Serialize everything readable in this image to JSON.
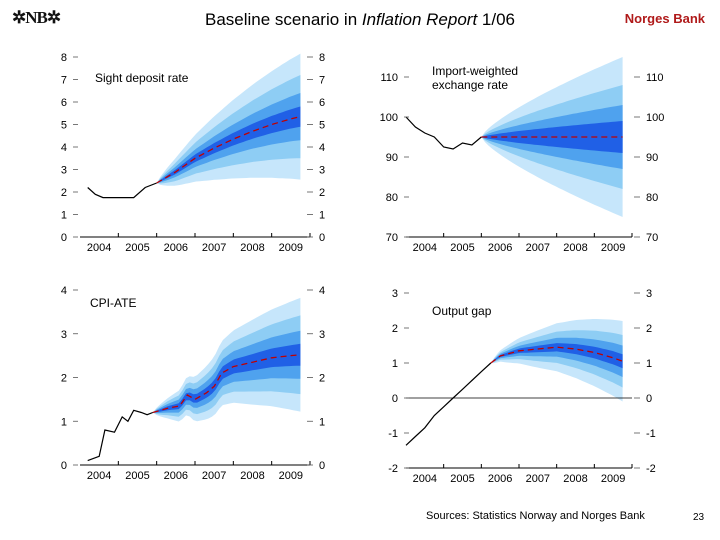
{
  "header": {
    "logo_text": "✲NB✲",
    "title_prefix": "Baseline scenario in ",
    "title_italic": "Inflation Report",
    "title_suffix": " 1/06",
    "brand": "Norges Bank"
  },
  "footer": {
    "sources": "Sources: Statistics Norway and Norges Bank",
    "page_number": "23"
  },
  "colors": {
    "band_outer": "#c6e6fb",
    "band_2": "#8ecdf4",
    "band_3": "#4fa2ee",
    "band_inner": "#2060e6",
    "baseline": "#c00000",
    "history": "#000000"
  },
  "chart_data": [
    {
      "id": "sight-deposit",
      "type": "area",
      "title": "Sight deposit rate",
      "x_tick_labels": [
        "2004",
        "2005",
        "2006",
        "2007",
        "2008",
        "2009"
      ],
      "y_tick_labels_left": [
        "0",
        "1",
        "2",
        "3",
        "4",
        "5",
        "6",
        "7",
        "8"
      ],
      "y_tick_labels_right": [
        "0",
        "1",
        "2",
        "3",
        "4",
        "5",
        "6",
        "7",
        "8"
      ],
      "xlim": [
        2004,
        2010
      ],
      "ylim": [
        0,
        8
      ],
      "history": {
        "x": [
          2004.2,
          2004.4,
          2004.6,
          2005.0,
          2005.4,
          2005.7,
          2006.0
        ],
        "y": [
          2.2,
          1.9,
          1.75,
          1.75,
          1.75,
          2.2,
          2.4
        ]
      },
      "forecast_start": 2006.0,
      "forecast_end": 2009.75,
      "baseline": {
        "x": [
          2006.0,
          2006.5,
          2007.0,
          2007.5,
          2008.0,
          2008.5,
          2009.0,
          2009.5,
          2009.75
        ],
        "y": [
          2.4,
          2.9,
          3.5,
          3.95,
          4.35,
          4.7,
          5.0,
          5.25,
          5.35
        ]
      },
      "band_halfwidths_at_end": [
        2.8,
        1.85,
        1.05,
        0.45
      ]
    },
    {
      "id": "import-weighted",
      "type": "area",
      "title": "Import-weighted exchange rate",
      "x_tick_labels": [
        "2004",
        "2005",
        "2006",
        "2007",
        "2008",
        "2009"
      ],
      "y_tick_labels_left": [
        "70",
        "80",
        "90",
        "100",
        "110"
      ],
      "y_tick_labels_right": [
        "70",
        "80",
        "90",
        "100",
        "110"
      ],
      "xlim": [
        2004,
        2010
      ],
      "ylim": [
        70,
        115
      ],
      "history": {
        "x": [
          2004.0,
          2004.25,
          2004.5,
          2004.75,
          2005.0,
          2005.25,
          2005.5,
          2005.75,
          2006.0
        ],
        "y": [
          100.0,
          97.5,
          96.0,
          95.0,
          92.5,
          92.0,
          93.5,
          93.0,
          95.0
        ]
      },
      "forecast_start": 2006.0,
      "forecast_end": 2009.75,
      "baseline": {
        "x": [
          2006.0,
          2009.75
        ],
        "y": [
          95.0,
          95.0
        ]
      },
      "band_halfwidths_at_end": [
        20.0,
        13.0,
        8.0,
        4.0
      ]
    },
    {
      "id": "cpi-ate",
      "type": "area",
      "title": "CPI-ATE",
      "x_tick_labels": [
        "2004",
        "2005",
        "2006",
        "2007",
        "2008",
        "2009"
      ],
      "y_tick_labels_left": [
        "0",
        "1",
        "2",
        "3",
        "4"
      ],
      "y_tick_labels_right": [
        "0",
        "1",
        "2",
        "3",
        "4"
      ],
      "xlim": [
        2004,
        2010
      ],
      "ylim": [
        0,
        4
      ],
      "history": {
        "x": [
          2004.2,
          2004.5,
          2004.65,
          2004.9,
          2005.1,
          2005.25,
          2005.4,
          2005.6,
          2005.75,
          2005.9
        ],
        "y": [
          0.1,
          0.2,
          0.8,
          0.75,
          1.1,
          1.0,
          1.25,
          1.2,
          1.15,
          1.2
        ]
      },
      "forecast_start": 2005.9,
      "forecast_end": 2009.75,
      "baseline": {
        "x": [
          2005.9,
          2006.3,
          2006.6,
          2006.8,
          2007.0,
          2007.3,
          2007.5,
          2007.7,
          2008.0,
          2008.5,
          2009.0,
          2009.5,
          2009.75
        ],
        "y": [
          1.2,
          1.3,
          1.35,
          1.6,
          1.5,
          1.65,
          1.8,
          2.1,
          2.25,
          2.35,
          2.45,
          2.5,
          2.52
        ]
      },
      "band_halfwidths_at_end": [
        1.3,
        0.9,
        0.55,
        0.25
      ]
    },
    {
      "id": "output-gap",
      "type": "area",
      "title": "Output gap",
      "x_tick_labels": [
        "2004",
        "2005",
        "2006",
        "2007",
        "2008",
        "2009"
      ],
      "y_tick_labels_left": [
        "-2",
        "-1",
        "0",
        "1",
        "2",
        "3"
      ],
      "y_tick_labels_right": [
        "-2",
        "-1",
        "0",
        "1",
        "2",
        "3"
      ],
      "xlim": [
        2004,
        2010
      ],
      "ylim": [
        -2,
        3
      ],
      "history": {
        "x": [
          2004.0,
          2004.25,
          2004.5,
          2004.75,
          2005.0,
          2005.25,
          2005.5,
          2005.75,
          2006.0,
          2006.25
        ],
        "y": [
          -1.35,
          -1.1,
          -0.85,
          -0.5,
          -0.25,
          0.0,
          0.25,
          0.5,
          0.75,
          1.0
        ]
      },
      "forecast_start": 2006.25,
      "forecast_end": 2009.75,
      "baseline": {
        "x": [
          2006.25,
          2006.5,
          2007.0,
          2007.5,
          2008.0,
          2008.5,
          2009.0,
          2009.5,
          2009.75
        ],
        "y": [
          1.0,
          1.2,
          1.35,
          1.4,
          1.45,
          1.4,
          1.3,
          1.15,
          1.05
        ]
      },
      "band_halfwidths_at_end": [
        1.15,
        0.75,
        0.45,
        0.2
      ]
    }
  ]
}
